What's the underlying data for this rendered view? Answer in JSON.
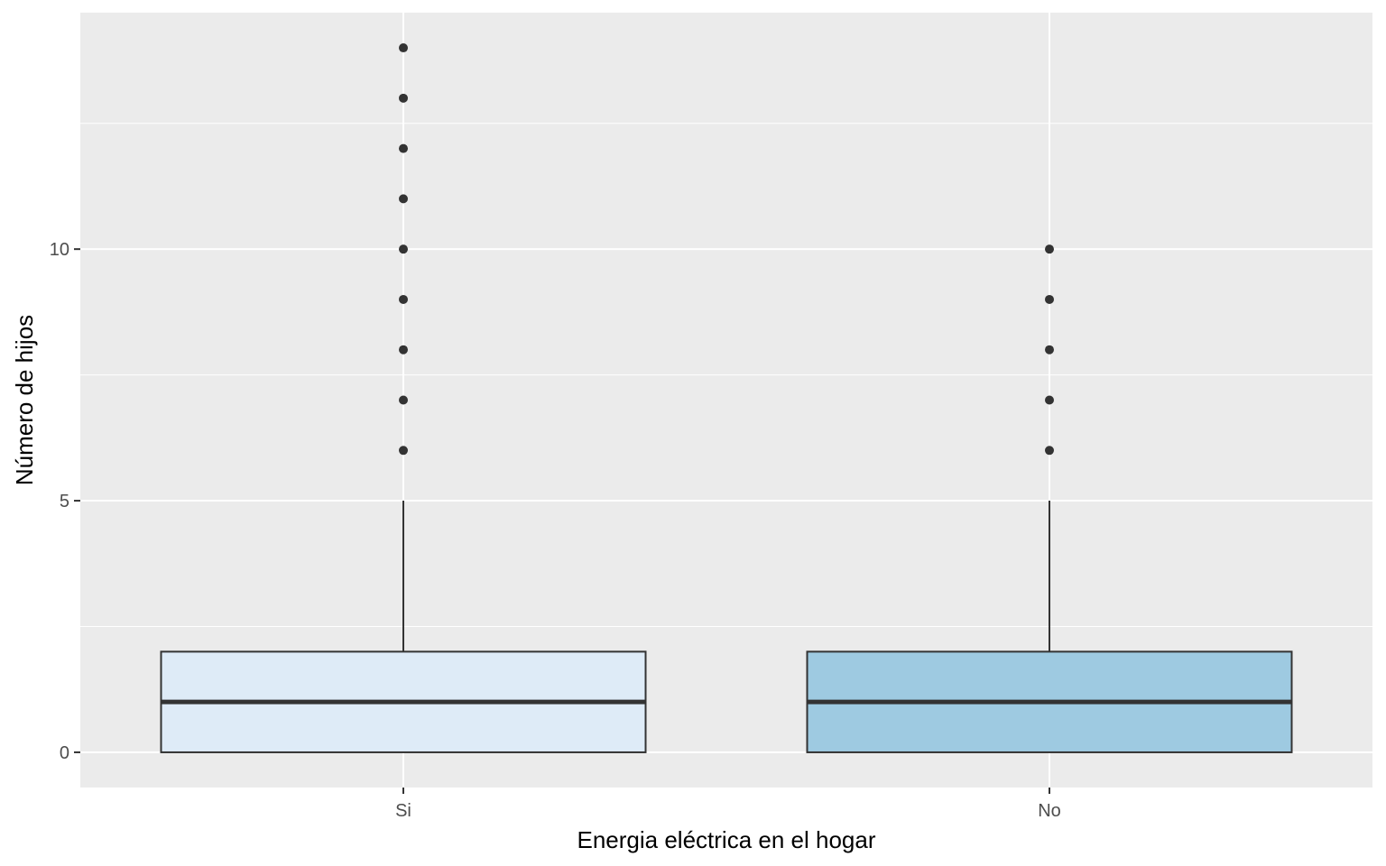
{
  "chart_data": {
    "type": "boxplot",
    "xlabel": "Energia eléctrica en el hogar",
    "ylabel": "Número de hijos",
    "categories": [
      "Si",
      "No"
    ],
    "ylim": [
      -0.7,
      14.7
    ],
    "y_ticks": [
      0,
      5,
      10
    ],
    "y_minor_ticks": [
      2.5,
      7.5,
      12.5
    ],
    "grid": true,
    "background": "#EBEBEB",
    "grid_color": "#FFFFFF",
    "box_outline_color": "#333333",
    "boxes": [
      {
        "category": "Si",
        "min": 0,
        "q1": 0,
        "median": 1,
        "q3": 2,
        "whisker_high": 5,
        "outliers": [
          6,
          7,
          8,
          9,
          10,
          11,
          12,
          13,
          14
        ],
        "fill": "#DEEBF7"
      },
      {
        "category": "No",
        "min": 0,
        "q1": 0,
        "median": 1,
        "q3": 2,
        "whisker_high": 5,
        "outliers": [
          6,
          7,
          8,
          9,
          10
        ],
        "fill": "#9ECAE1"
      }
    ]
  }
}
